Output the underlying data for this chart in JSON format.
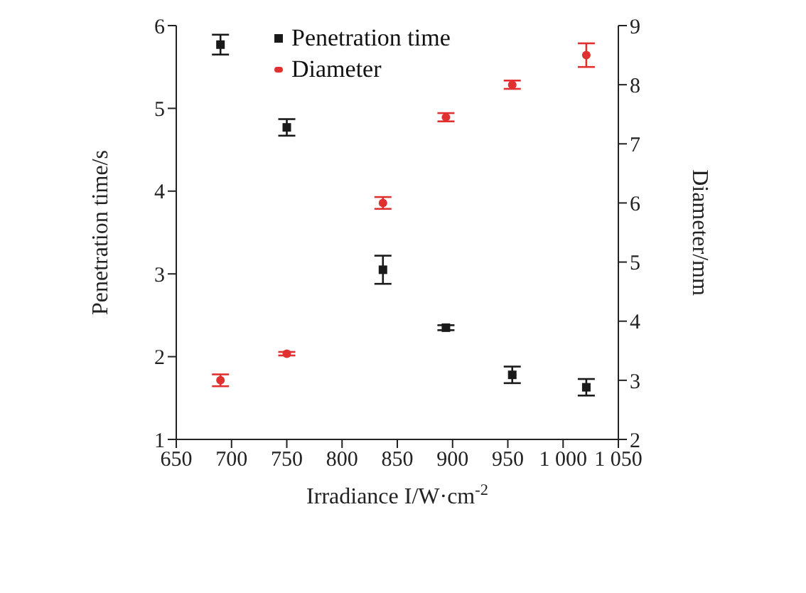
{
  "chart_data": {
    "type": "scatter",
    "xlabel": "Irradiance I/W·cm$^{-2}$",
    "ylabel": "Penetration time/s",
    "y2label": "Diameter/mm",
    "x": [
      690,
      750,
      837,
      894,
      954,
      1021
    ],
    "series": [
      {
        "name": "Penetration time",
        "color": "#1a1a1a",
        "marker": "square",
        "values": [
          5.77,
          4.77,
          3.05,
          2.35,
          1.78,
          1.63
        ],
        "errors": [
          0.12,
          0.1,
          0.17,
          0.03,
          0.1,
          0.1
        ]
      },
      {
        "name": "Diameter",
        "color": "#e03030",
        "marker": "circle",
        "axis": "y2",
        "values": [
          3.0,
          3.45,
          6.0,
          7.45,
          8.0,
          8.5
        ],
        "errors": [
          0.1,
          0.03,
          0.1,
          0.07,
          0.07,
          0.2
        ]
      }
    ],
    "xlim": [
      650,
      1050
    ],
    "xticks": [
      650,
      700,
      750,
      800,
      850,
      900,
      950,
      {
        "value": 1000,
        "label": "1 000"
      },
      {
        "value": 1050,
        "label": "1 050"
      }
    ],
    "ylim": [
      1,
      6
    ],
    "yticks": [
      1,
      2,
      3,
      4,
      5,
      6
    ],
    "y2lim": [
      2,
      9
    ],
    "y2ticks": [
      2,
      3,
      4,
      5,
      6,
      7,
      8,
      9
    ],
    "grid": false,
    "legend": "top"
  }
}
